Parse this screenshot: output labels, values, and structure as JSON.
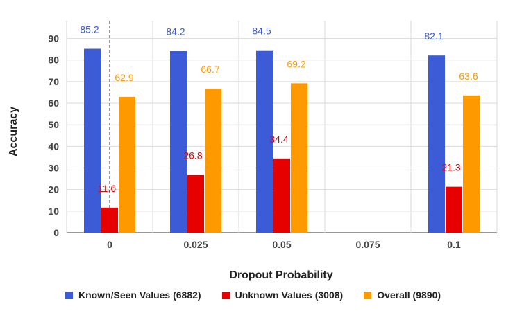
{
  "chart_data": {
    "type": "bar",
    "xlabel": "Dropout Probability",
    "ylabel": "Accuracy",
    "categories": [
      "0",
      "0.025",
      "0.05",
      "0.075",
      "0.1"
    ],
    "ylim": [
      0,
      95
    ],
    "yticks": [
      0,
      10,
      20,
      30,
      40,
      50,
      60,
      70,
      80,
      90
    ],
    "grid": true,
    "legend_position": "bottom",
    "series": [
      {
        "name": "Known/Seen Values (6882)",
        "color": "#3c5bd6",
        "label_color": "#3c5bd6",
        "values": [
          85.2,
          84.2,
          84.5,
          null,
          82.1
        ]
      },
      {
        "name": "Unknown Values (3008)",
        "color": "#e60000",
        "label_color": "#e60000",
        "values": [
          11.6,
          26.8,
          34.4,
          null,
          21.3
        ]
      },
      {
        "name": "Overall (9890)",
        "color": "#ff9900",
        "label_color": "#ff9900",
        "values": [
          62.9,
          66.7,
          69.2,
          null,
          63.6
        ]
      }
    ]
  }
}
